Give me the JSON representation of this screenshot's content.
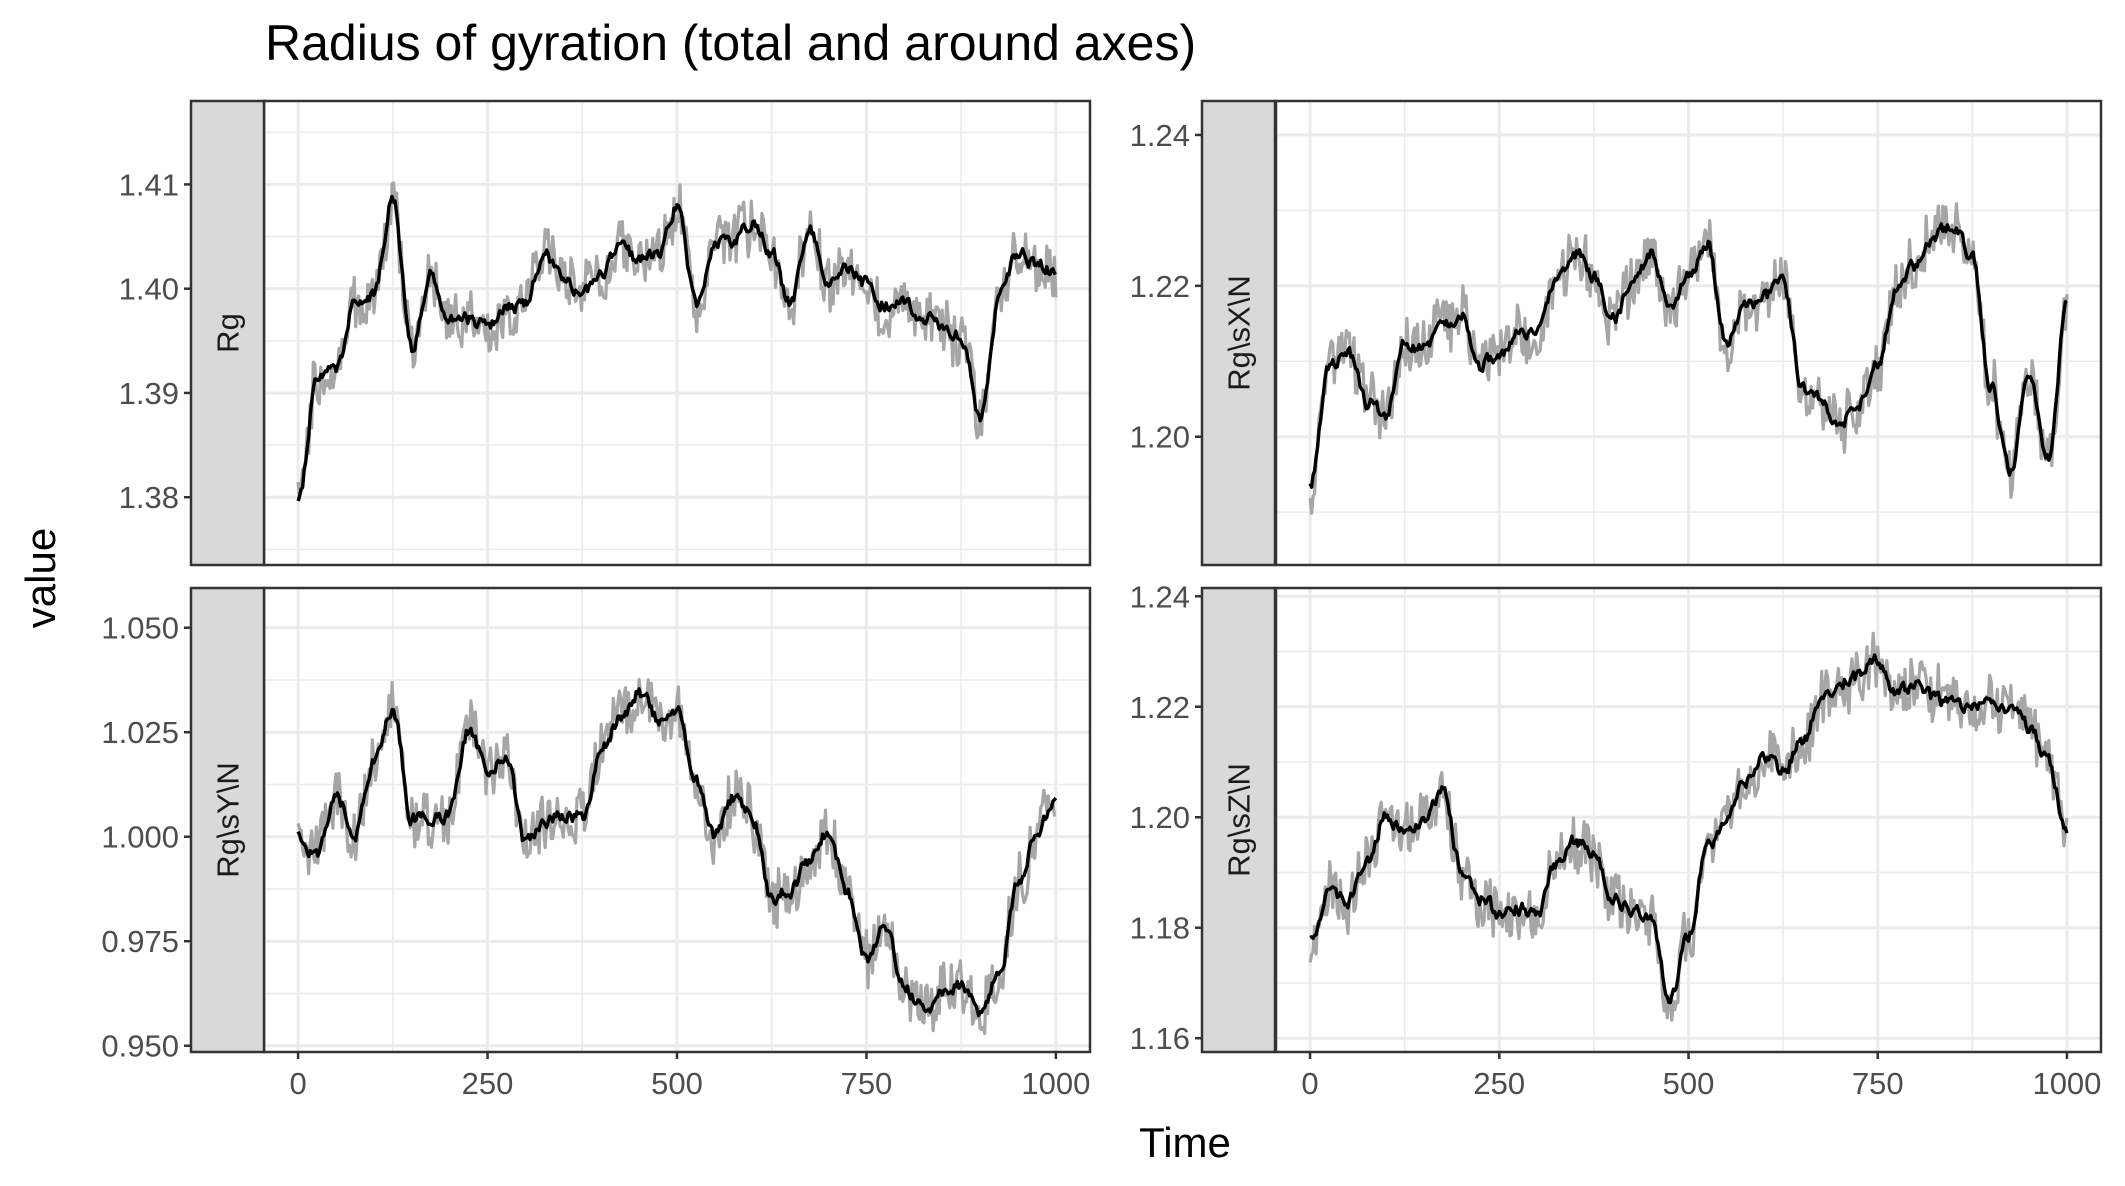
{
  "chart_data": {
    "type": "line",
    "title": "Radius of gyration (total and around axes)",
    "xlabel": "Time",
    "ylabel": "value",
    "grid": true,
    "legend": "none",
    "xlim": [
      0,
      1000
    ],
    "x_ticks": [
      "0",
      "250",
      "500",
      "750",
      "1000"
    ],
    "colors": {
      "raw": "#a6a6a6",
      "smooth": "#000000",
      "strip": "#d9d9d9",
      "panel_border": "#333333",
      "grid": "#ebebeb"
    },
    "panels": [
      {
        "label": "Rg",
        "ylim": [
          1.3735,
          1.418
        ],
        "y_ticks": [
          "1.38",
          "1.39",
          "1.40",
          "1.41"
        ],
        "series": [
          {
            "x": [
              0,
              25,
              50,
              75,
              100,
              125,
              150,
              175,
              200,
              225,
              250,
              275,
              300,
              325,
              350,
              375,
              400,
              425,
              450,
              475,
              500,
              525,
              550,
              575,
              600,
              625,
              650,
              675,
              700,
              725,
              750,
              775,
              800,
              825,
              850,
              875,
              900,
              925,
              950,
              975,
              1000
            ],
            "y": [
              1.3795,
              1.3915,
              1.3925,
              1.3985,
              1.3995,
              1.4085,
              1.394,
              1.4015,
              1.3975,
              1.397,
              1.3965,
              1.398,
              1.3985,
              1.4035,
              1.4005,
              1.3995,
              1.4015,
              1.4045,
              1.4025,
              1.4035,
              1.408,
              1.3985,
              1.4045,
              1.4045,
              1.4065,
              1.4035,
              1.3985,
              1.4055,
              1.4005,
              1.402,
              1.4005,
              1.3985,
              1.3985,
              1.3975,
              1.396,
              1.3955,
              1.3875,
              1.399,
              1.4035,
              1.4025,
              1.4015
            ]
          }
        ]
      },
      {
        "label": "Rg\\sX\\N",
        "ylim": [
          1.183,
          1.2445
        ],
        "y_ticks": [
          "1.20",
          "1.22",
          "1.24"
        ],
        "series": [
          {
            "x": [
              0,
              25,
              50,
              75,
              100,
              125,
              150,
              175,
              200,
              225,
              250,
              275,
              300,
              325,
              350,
              375,
              400,
              425,
              450,
              475,
              500,
              525,
              550,
              575,
              600,
              625,
              650,
              675,
              700,
              725,
              750,
              775,
              800,
              825,
              850,
              875,
              900,
              925,
              950,
              975,
              1000
            ],
            "y": [
              1.1935,
              1.2095,
              1.2115,
              1.2045,
              1.2025,
              1.2125,
              1.2115,
              1.2145,
              1.2165,
              1.2095,
              1.2105,
              1.2145,
              1.2135,
              1.2215,
              1.2245,
              1.2215,
              1.2155,
              1.2195,
              1.2245,
              1.2175,
              1.2215,
              1.2255,
              1.2125,
              1.2175,
              1.2185,
              1.2205,
              1.2065,
              1.2045,
              1.2015,
              1.2045,
              1.2095,
              1.2195,
              1.2225,
              1.2265,
              1.2285,
              1.2235,
              1.2065,
              1.1955,
              1.2085,
              1.1975,
              1.2175
            ]
          }
        ]
      },
      {
        "label": "Rg\\sY\\N",
        "ylim": [
          0.9485,
          1.0595
        ],
        "y_ticks": [
          "0.950",
          "0.975",
          "1.000",
          "1.025",
          "1.050"
        ],
        "series": [
          {
            "x": [
              0,
              25,
              50,
              75,
              100,
              125,
              150,
              175,
              200,
              225,
              250,
              275,
              300,
              325,
              350,
              375,
              400,
              425,
              450,
              475,
              500,
              525,
              550,
              575,
              600,
              625,
              650,
              675,
              700,
              725,
              750,
              775,
              800,
              825,
              850,
              875,
              900,
              925,
              950,
              975,
              1000
            ],
            "y": [
              1.0005,
              0.9955,
              1.0095,
              1.0005,
              1.0185,
              1.0305,
              1.0045,
              1.0045,
              1.0055,
              1.0255,
              1.0165,
              1.0195,
              0.9985,
              1.0045,
              1.0045,
              1.0045,
              1.0205,
              1.0285,
              1.0345,
              1.0285,
              1.0305,
              1.0125,
              1.0005,
              1.0095,
              1.0045,
              0.9855,
              0.9875,
              0.9945,
              1.0015,
              0.9865,
              0.9705,
              0.9785,
              0.9645,
              0.9585,
              0.9625,
              0.9645,
              0.9585,
              0.9665,
              0.9895,
              1.0015,
              1.0095
            ]
          }
        ]
      },
      {
        "label": "Rg\\sZ\\N",
        "ylim": [
          1.1575,
          1.2415
        ],
        "y_ticks": [
          "1.16",
          "1.18",
          "1.20",
          "1.22",
          "1.24"
        ],
        "series": [
          {
            "x": [
              0,
              25,
              50,
              75,
              100,
              125,
              150,
              175,
              200,
              225,
              250,
              275,
              300,
              325,
              350,
              375,
              400,
              425,
              450,
              475,
              500,
              525,
              550,
              575,
              600,
              625,
              650,
              675,
              700,
              725,
              750,
              775,
              800,
              825,
              850,
              875,
              900,
              925,
              950,
              975,
              1000
            ],
            "y": [
              1.1775,
              1.1865,
              1.1845,
              1.1915,
              1.2005,
              1.1975,
              1.1995,
              1.2045,
              1.1905,
              1.1855,
              1.1825,
              1.1835,
              1.1825,
              1.1915,
              1.1955,
              1.1935,
              1.1855,
              1.1835,
              1.1815,
              1.1665,
              1.1785,
              1.1945,
              1.1995,
              1.2065,
              1.2105,
              1.2085,
              1.2135,
              1.2205,
              1.2245,
              1.2255,
              1.2285,
              1.2225,
              1.2235,
              1.2215,
              1.2205,
              1.2205,
              1.2205,
              1.2195,
              1.2165,
              1.2105,
              1.1965
            ]
          }
        ]
      }
    ]
  }
}
